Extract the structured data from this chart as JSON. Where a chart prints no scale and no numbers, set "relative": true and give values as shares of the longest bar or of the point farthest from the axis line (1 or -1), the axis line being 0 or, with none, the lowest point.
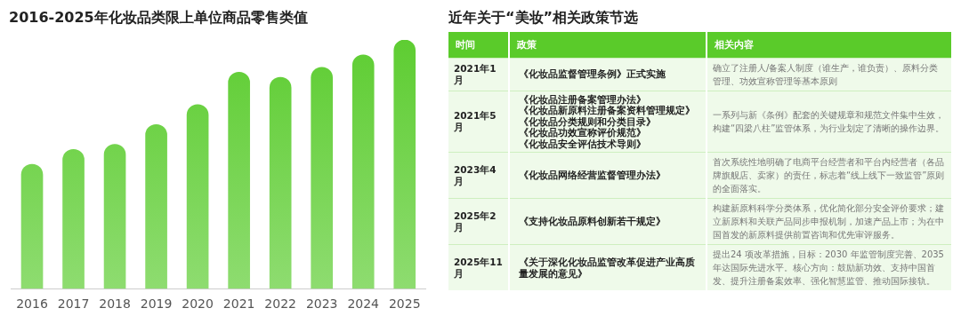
{
  "chart_data": [
    {
      "type": "bar",
      "title": "2016-2025年化妆品类限上单位商品零售类值",
      "categories": [
        "2016",
        "2017",
        "2018",
        "2019",
        "2020",
        "2021",
        "2022",
        "2023",
        "2024",
        "2025"
      ],
      "values": [
        0.5,
        0.56,
        0.58,
        0.66,
        0.74,
        0.87,
        0.85,
        0.89,
        0.94,
        1
      ],
      "color": "#5ecd32",
      "relative": true,
      "grid": false,
      "legend": false
    },
    {
      "type": "other",
      "title": "近年关于“美妆”相关政策节选",
      "categories": [
        "时间",
        "政策",
        "相关内容"
      ],
      "color": "#5acb2a",
      "annotations": [
        "2021年1月",
        "《化妆品监督管理条例》正式实施",
        "确立了注册人/备案人制度（谁生产，谁负责）、原料分类管理、功效宣称管理等基本原则",
        "2021年5月",
        "《化妆品注册备案管理办法》《化妆品新原料注册备案资料管理规定》《化妆品分类规则和分类目录》《化妆品功效宣称评价规范》《化妆品安全评估技术导则》",
        "一系列与新《条例》配套的关键规章和规范文件集中生效，构建“四梁八柱”监管体系，为行业划定了清晰的操作边界。",
        "2023年4月",
        "《化妆品网络经营监督管理办法》",
        "首次系统性地明确了电商平台经营者和平台内经营者（各品牌旗舰店、卖家）的责任，标志着“线上线下一致监管”原则的全面落实。",
        "2025年2月",
        "《支持化妆品原料创新若干规定》",
        "构建新原料科学分类体系，优化简化部分安全评价要求；建立新原料和关联产品同步申报机制，加速产品上市；为在中国首发的新原料提供前置咨询和优先审评服务。",
        "2025年11月",
        "《关于深化化妆品监管改革促进产业高质量发展的意见》",
        "提出24 项改革措施，目标：2030 年监管制度完善、2035 年达国际先进水平。核心方向：鼓励新功效、支持中国首发、提升注册备案效率、强化智慧监管、推动国际接轨。"
      ]
    }
  ]
}
